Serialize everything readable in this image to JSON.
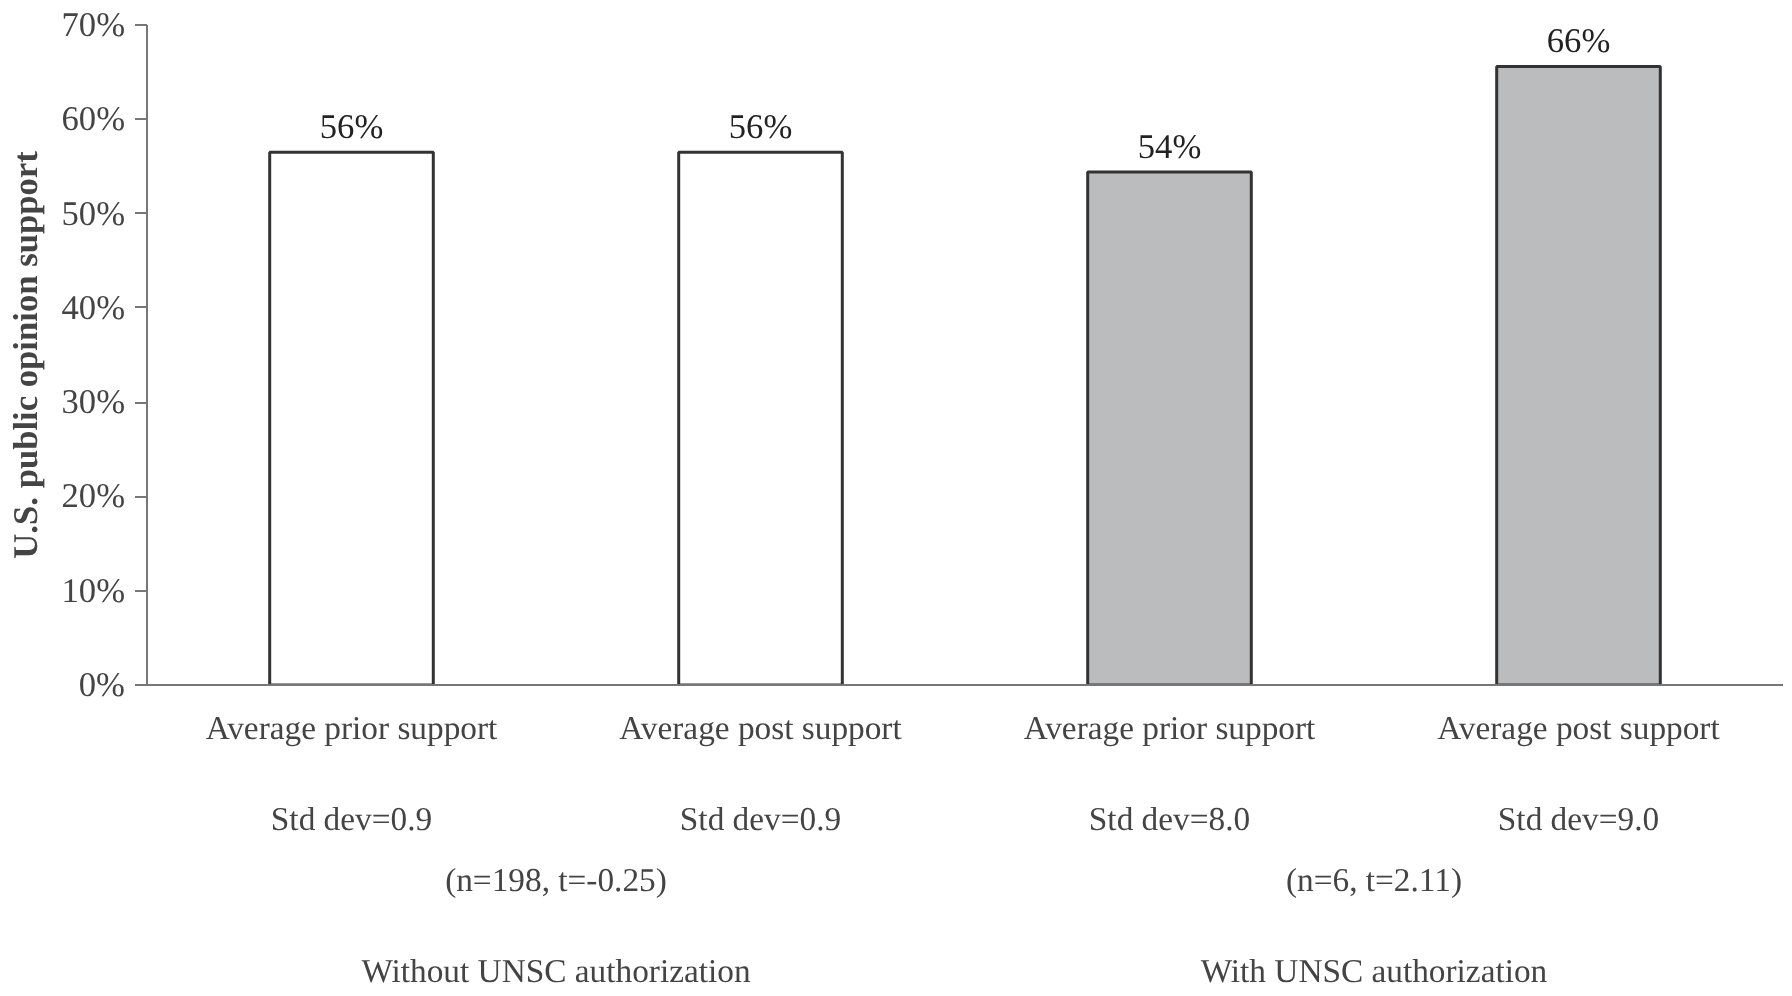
{
  "chart_data": {
    "type": "bar",
    "ylabel": "U.S. public opinion support",
    "categories": [
      "Average prior support\n\nStd dev=0.9",
      "Average post support\n\nStd dev=0.9",
      "Average prior support\n\nStd dev=8.0",
      "Average post support\n\nStd dev=9.0"
    ],
    "values": [
      56.5,
      56.5,
      54.4,
      65.6
    ],
    "colors": [
      "#ffffff",
      "#ffffff",
      "#bbbcbe",
      "#bbbcbe"
    ],
    "value_labels": [
      "56%",
      "56%",
      "54%",
      "66%"
    ],
    "annotations": [
      "(n=198, t=-0.25)",
      "(n=6, t=2.11)",
      "Without UNSC authorization",
      "With UNSC authorization"
    ],
    "ylim": [
      0,
      70
    ],
    "yticks": [
      {
        "value": 0,
        "label": "0%"
      },
      {
        "value": 10,
        "label": "10%"
      },
      {
        "value": 20,
        "label": "20%"
      },
      {
        "value": 30,
        "label": "30%"
      },
      {
        "value": 40,
        "label": "40%"
      },
      {
        "value": 50,
        "label": "50%"
      },
      {
        "value": 60,
        "label": "60%"
      },
      {
        "value": 70,
        "label": "70%"
      }
    ],
    "grid": false
  }
}
